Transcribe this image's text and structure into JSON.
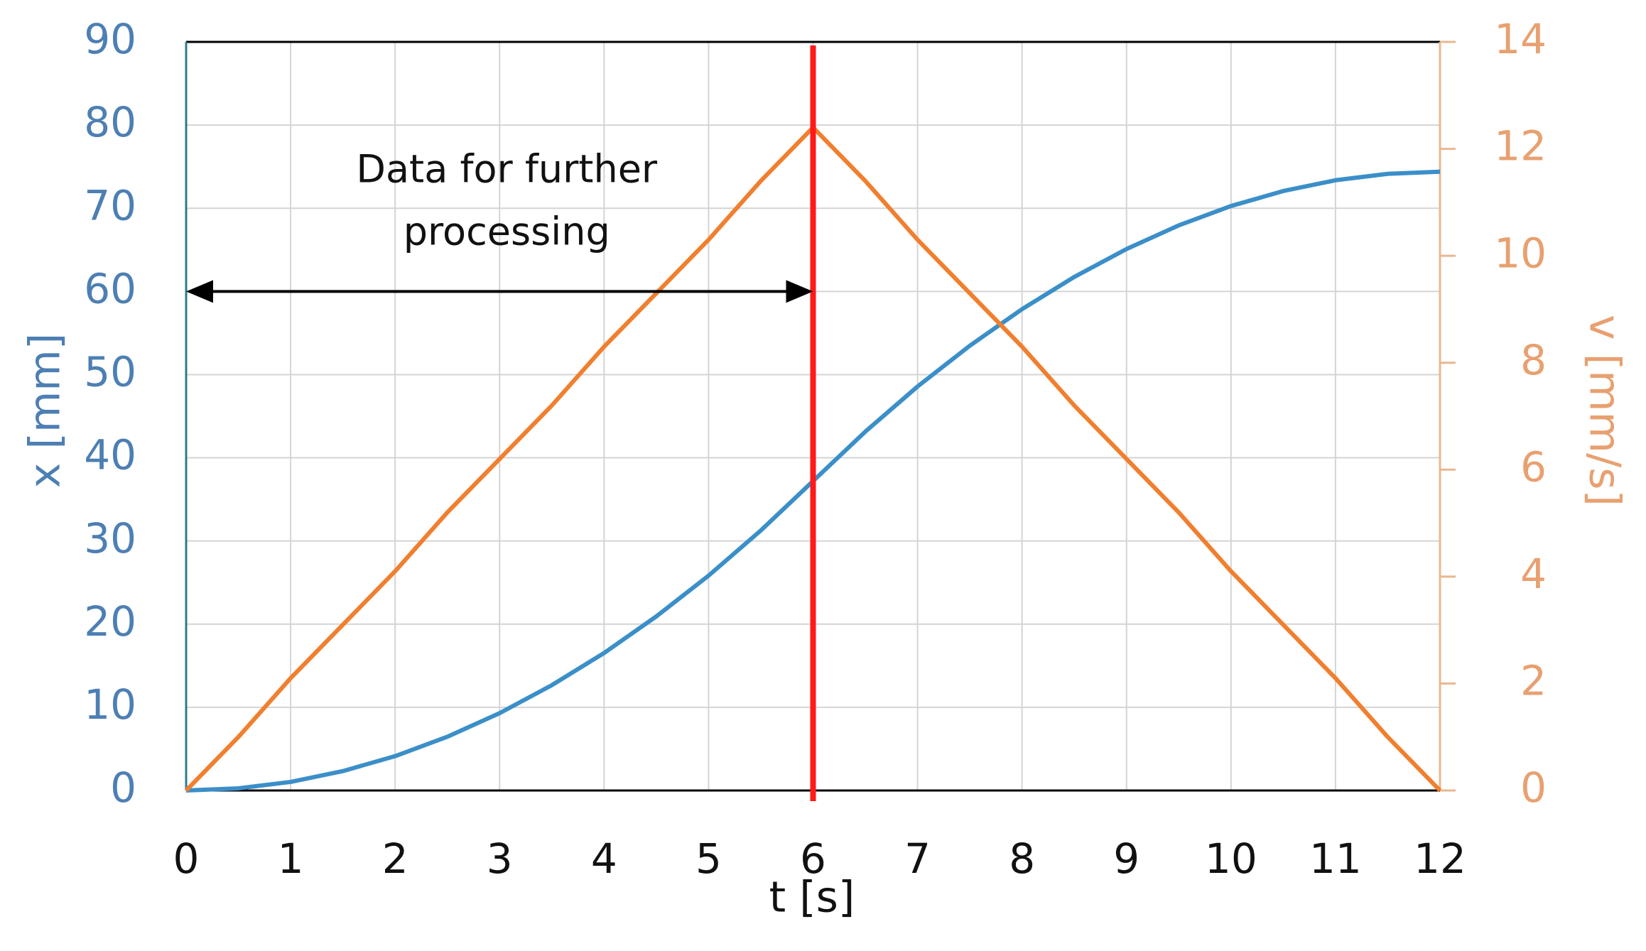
{
  "chart_data": {
    "type": "line",
    "x_label": "t [s]",
    "y_label": "x [mm]",
    "y2_label": "v [mm/s]",
    "x": [
      0,
      0.5,
      1,
      1.5,
      2,
      2.5,
      3,
      3.5,
      4,
      4.5,
      5,
      5.5,
      6,
      6.5,
      7,
      7.5,
      8,
      8.5,
      9,
      9.5,
      10,
      10.5,
      11,
      11.5,
      12
    ],
    "series": [
      {
        "name": "x",
        "color": "#3b8fc9",
        "axis": "y",
        "values": [
          0,
          0.26,
          1.03,
          2.33,
          4.13,
          6.46,
          9.3,
          12.66,
          16.53,
          20.93,
          25.83,
          31.26,
          37.2,
          43.14,
          48.57,
          53.47,
          57.87,
          61.74,
          65.1,
          67.94,
          70.27,
          72.07,
          73.37,
          74.14,
          74.4
        ]
      },
      {
        "name": "v",
        "color": "#f07f2f",
        "axis": "y2",
        "values": [
          0,
          1.0,
          2.1,
          3.1,
          4.1,
          5.2,
          6.2,
          7.2,
          8.3,
          9.3,
          10.3,
          11.4,
          12.4,
          11.4,
          10.3,
          9.3,
          8.3,
          7.2,
          6.2,
          5.2,
          4.1,
          3.1,
          2.1,
          1.0,
          0
        ]
      }
    ],
    "xlim": [
      0,
      12
    ],
    "xticks": [
      0,
      1,
      2,
      3,
      4,
      5,
      6,
      7,
      8,
      9,
      10,
      11,
      12
    ],
    "ylim": [
      0,
      90
    ],
    "yticks": [
      0,
      10,
      20,
      30,
      40,
      50,
      60,
      70,
      80,
      90
    ],
    "y2lim": [
      0,
      14
    ],
    "y2ticks": [
      0,
      2,
      4,
      6,
      8,
      10,
      12,
      14
    ],
    "grid": true,
    "vline": {
      "x": 6,
      "color": "#ff1a1a"
    },
    "annotation": {
      "lines": [
        "Data for further",
        "processing"
      ],
      "x_start": 0,
      "x_end": 6,
      "y": 60
    }
  }
}
